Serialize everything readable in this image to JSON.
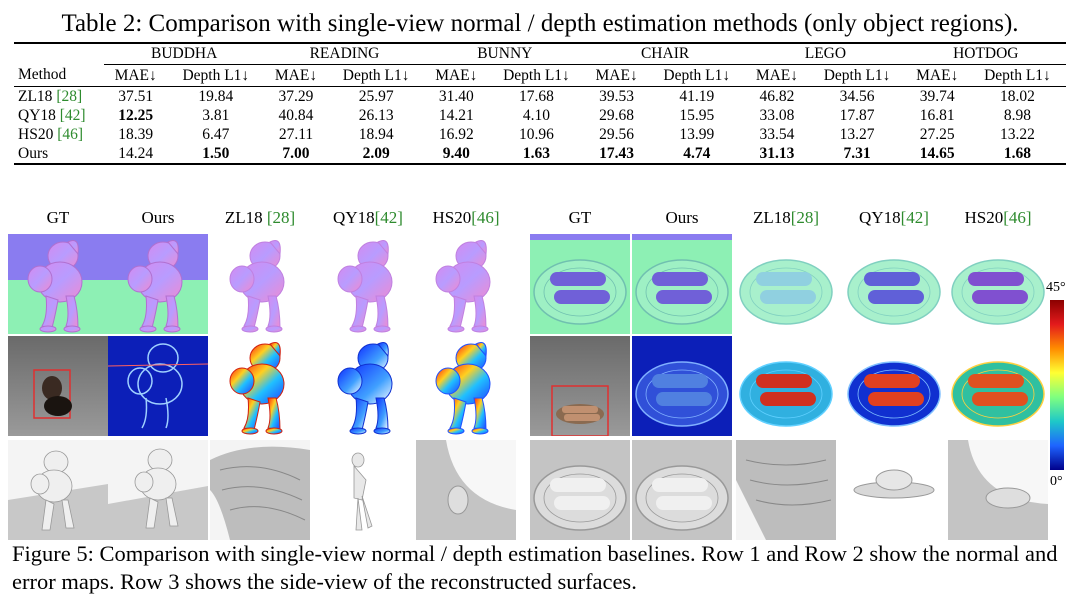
{
  "table": {
    "caption": "Table 2: Comparison with single-view normal / depth estimation methods (only object regions).",
    "method_header": "Method",
    "datasets": [
      "BUDDHA",
      "READING",
      "BUNNY",
      "CHAIR",
      "LEGO",
      "HOTDOG"
    ],
    "metric_headers": [
      "MAE↓",
      "Depth L1↓"
    ],
    "rows": [
      {
        "name": "ZL18 ",
        "ref": "[28]",
        "values": [
          "37.51",
          "19.84",
          "37.29",
          "25.97",
          "31.40",
          "17.68",
          "39.53",
          "41.19",
          "46.82",
          "34.56",
          "39.74",
          "18.02"
        ]
      },
      {
        "name": "QY18 ",
        "ref": "[42]",
        "values": [
          "12.25",
          "3.81",
          "40.84",
          "26.13",
          "14.21",
          "4.10",
          "29.68",
          "15.95",
          "33.08",
          "17.87",
          "16.81",
          "8.98"
        ]
      },
      {
        "name": "HS20 ",
        "ref": "[46]",
        "values": [
          "18.39",
          "6.47",
          "27.11",
          "18.94",
          "16.92",
          "10.96",
          "29.56",
          "13.99",
          "33.54",
          "13.27",
          "27.25",
          "13.22"
        ]
      },
      {
        "name": "Ours",
        "ref": "",
        "values": [
          "14.24",
          "1.50",
          "7.00",
          "2.09",
          "9.40",
          "1.63",
          "17.43",
          "4.74",
          "31.13",
          "7.31",
          "14.65",
          "1.68"
        ]
      }
    ]
  },
  "figure": {
    "columns_left": [
      {
        "name": "GT",
        "ref": ""
      },
      {
        "name": "Ours",
        "ref": ""
      },
      {
        "name": "ZL18 ",
        "ref": "[28]"
      },
      {
        "name": "QY18",
        "ref": "[42]"
      },
      {
        "name": "HS20",
        "ref": "[46]"
      }
    ],
    "columns_right": [
      {
        "name": "GT",
        "ref": ""
      },
      {
        "name": "Ours",
        "ref": ""
      },
      {
        "name": "ZL18",
        "ref": "[28]"
      },
      {
        "name": "QY18",
        "ref": "[42]"
      },
      {
        "name": "HS20",
        "ref": "[46]"
      }
    ],
    "colorbar_max": "45°",
    "colorbar_min": "0°",
    "caption": "Figure 5: Comparison with single-view normal / depth estimation baselines. Row 1 and Row 2 show the normal and error maps. Row 3 shows the side-view of the reconstructed surfaces."
  }
}
